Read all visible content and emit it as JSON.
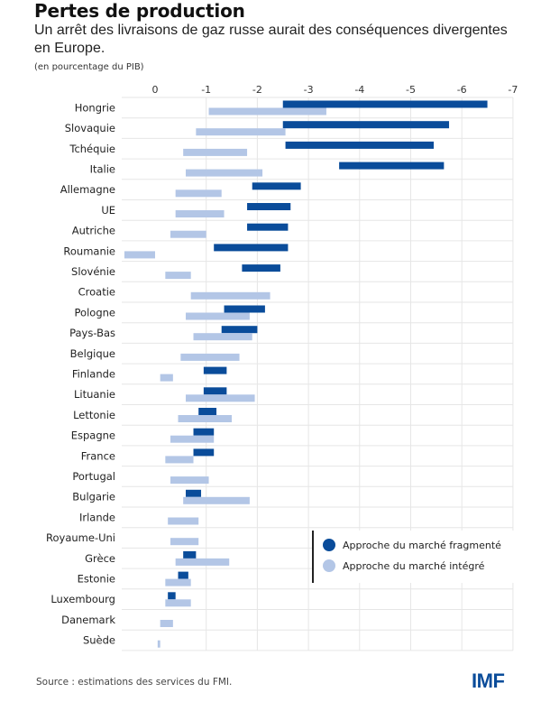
{
  "header": {
    "title": "Pertes de production",
    "subtitle": "Un arrêt des livraisons de gaz russe aurait des conséquences divergentes en Europe.",
    "unit": "(en pourcentage du PIB)"
  },
  "footer": {
    "source": "Source : estimations des services du FMI.",
    "logo": "IMF"
  },
  "colors": {
    "fragmented": "#0a4c9a",
    "integrated": "#b3c6e6",
    "grid": "#e6e6e6"
  },
  "chart_data": {
    "type": "bar",
    "subtype": "floating-range-horizontal",
    "title": "Pertes de production",
    "subtitle": "Un arrêt des livraisons de gaz russe aurait des conséquences divergentes en Europe.",
    "xlabel": "(en pourcentage du PIB)",
    "ylabel": "",
    "xlim": [
      0.6,
      -7
    ],
    "x_ticks": [
      0,
      -1,
      -2,
      -3,
      -4,
      -5,
      -6,
      -7
    ],
    "x_tick_labels": [
      "0",
      "-1",
      "-2",
      "-3",
      "-4",
      "-5",
      "-6",
      "-7"
    ],
    "x_axis_position": "top",
    "grid": true,
    "legend_position": "bottom-right",
    "categories": [
      "Hongrie",
      "Slovaquie",
      "Tchéquie",
      "Italie",
      "Allemagne",
      "UE",
      "Autriche",
      "Roumanie",
      "Slovénie",
      "Croatie",
      "Pologne",
      "Pays-Bas",
      "Belgique",
      "Finlande",
      "Lituanie",
      "Lettonie",
      "Espagne",
      "France",
      "Portugal",
      "Bulgarie",
      "Irlande",
      "Royaume-Uni",
      "Grèce",
      "Estonie",
      "Luxembourg",
      "Danemark",
      "Suède"
    ],
    "series": [
      {
        "name": "Approche du marché fragmenté",
        "color": "#0a4c9a",
        "ranges": [
          [
            -2.5,
            -6.5
          ],
          [
            -2.5,
            -5.75
          ],
          [
            -2.55,
            -5.45
          ],
          [
            -3.6,
            -5.65
          ],
          [
            -1.9,
            -2.85
          ],
          [
            -1.8,
            -2.65
          ],
          [
            -1.8,
            -2.6
          ],
          [
            -1.15,
            -2.6
          ],
          [
            -1.7,
            -2.45
          ],
          null,
          [
            -1.35,
            -2.15
          ],
          [
            -1.3,
            -2.0
          ],
          null,
          [
            -0.95,
            -1.4
          ],
          [
            -0.95,
            -1.4
          ],
          [
            -0.85,
            -1.2
          ],
          [
            -0.75,
            -1.15
          ],
          [
            -0.75,
            -1.15
          ],
          null,
          [
            -0.6,
            -0.9
          ],
          null,
          null,
          [
            -0.55,
            -0.8
          ],
          [
            -0.45,
            -0.65
          ],
          [
            -0.25,
            -0.4
          ],
          null,
          null
        ]
      },
      {
        "name": "Approche du marché intégré",
        "color": "#b3c6e6",
        "ranges": [
          [
            -1.05,
            -3.35
          ],
          [
            -0.8,
            -2.55
          ],
          [
            -0.55,
            -1.8
          ],
          [
            -0.6,
            -2.1
          ],
          [
            -0.4,
            -1.3
          ],
          [
            -0.4,
            -1.35
          ],
          [
            -0.3,
            -1.0
          ],
          [
            0.6,
            0.0
          ],
          [
            -0.2,
            -0.7
          ],
          [
            -0.7,
            -2.25
          ],
          [
            -0.6,
            -1.85
          ],
          [
            -0.75,
            -1.9
          ],
          [
            -0.5,
            -1.65
          ],
          [
            -0.1,
            -0.35
          ],
          [
            -0.6,
            -1.95
          ],
          [
            -0.45,
            -1.5
          ],
          [
            -0.3,
            -1.15
          ],
          [
            -0.2,
            -0.75
          ],
          [
            -0.3,
            -1.05
          ],
          [
            -0.55,
            -1.85
          ],
          [
            -0.25,
            -0.85
          ],
          [
            -0.3,
            -0.85
          ],
          [
            -0.4,
            -1.45
          ],
          [
            -0.2,
            -0.7
          ],
          [
            -0.2,
            -0.7
          ],
          [
            -0.1,
            -0.35
          ],
          [
            -0.05,
            -0.1
          ]
        ]
      }
    ]
  }
}
